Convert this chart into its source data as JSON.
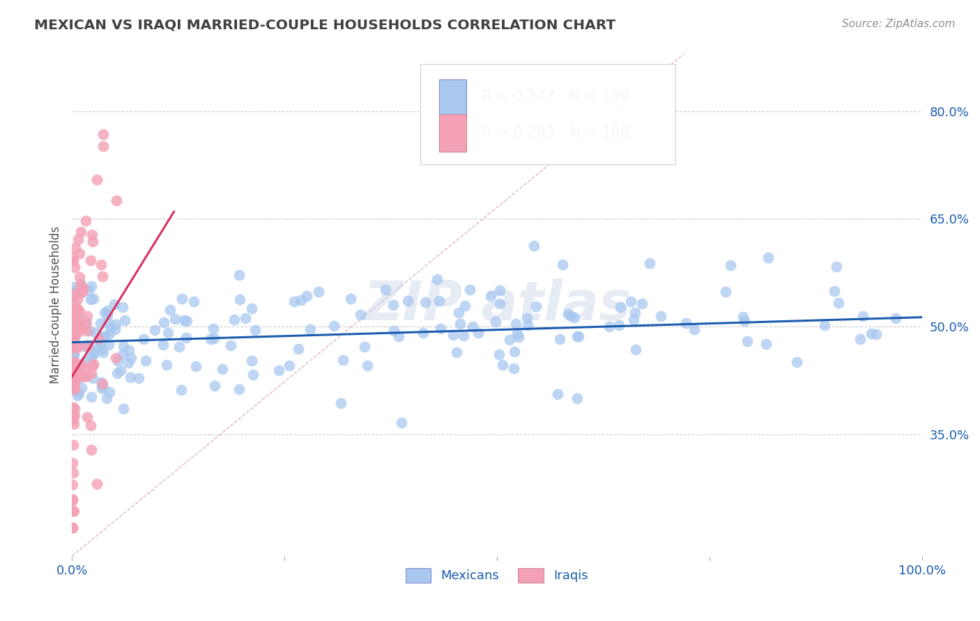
{
  "title": "MEXICAN VS IRAQI MARRIED-COUPLE HOUSEHOLDS CORRELATION CHART",
  "source_text": "Source: ZipAtlas.com",
  "ylabel": "Married-couple Households",
  "xlim": [
    0,
    1.0
  ],
  "ylim": [
    0.18,
    0.88
  ],
  "yticks": [
    0.35,
    0.5,
    0.65,
    0.8
  ],
  "ytick_labels": [
    "35.0%",
    "50.0%",
    "65.0%",
    "80.0%"
  ],
  "xtick_labels": [
    "0.0%",
    "",
    "",
    "",
    "100.0%"
  ],
  "mexican_R": 0.347,
  "mexican_N": 199,
  "iraqi_R": 0.293,
  "iraqi_N": 106,
  "mexican_color": "#a8c8f0",
  "iraqi_color": "#f4a0b5",
  "mexican_line_color": "#1a5cb0",
  "iraqi_line_color": "#d83060",
  "legend_blue_box": "#a8c8f0",
  "legend_pink_box": "#f4a0b5",
  "legend_text_color": "#1a5cb0",
  "background_color": "#ffffff",
  "grid_color": "#cccccc",
  "title_color": "#404040",
  "axis_label_color": "#1a5cb0",
  "source_color": "#909090"
}
